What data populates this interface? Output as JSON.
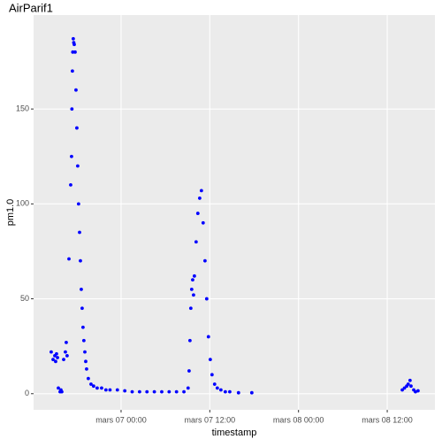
{
  "chart_data": {
    "type": "scatter",
    "title": "AirParif1",
    "x_label": "timestamp",
    "y_label": "pm1.0",
    "color": "#0000ff",
    "grid": true,
    "xlim": [
      "03-06 12:10",
      "03-08 18:27"
    ],
    "xticks": [
      {
        "value": "03-07 00:00",
        "label": "mars 07 00:00"
      },
      {
        "value": "03-07 12:00",
        "label": "mars 07 12:00"
      },
      {
        "value": "03-08 00:00",
        "label": "mars 08 00:00"
      },
      {
        "value": "03-08 12:00",
        "label": "mars 08 12:00"
      }
    ],
    "ylim": [
      -8.5,
      199.5
    ],
    "yticks": [
      0,
      50,
      100,
      150
    ],
    "x": [
      "03-06 14:33",
      "03-06 14:48",
      "03-06 15:02",
      "03-06 15:09",
      "03-06 15:16",
      "03-06 15:24",
      "03-06 15:31",
      "03-06 15:45",
      "03-06 15:52",
      "03-06 15:59",
      "03-06 16:14",
      "03-06 16:28",
      "03-06 16:35",
      "03-06 16:42",
      "03-06 16:57",
      "03-06 17:11",
      "03-06 17:18",
      "03-06 17:21",
      "03-06 17:25",
      "03-06 17:28",
      "03-06 17:32",
      "03-06 17:36",
      "03-06 17:40",
      "03-06 17:47",
      "03-06 17:54",
      "03-06 18:01",
      "03-06 18:08",
      "03-06 18:15",
      "03-06 18:23",
      "03-06 18:30",
      "03-06 18:37",
      "03-06 18:44",
      "03-06 18:51",
      "03-06 18:58",
      "03-06 19:06",
      "03-06 19:13",
      "03-06 19:20",
      "03-06 19:34",
      "03-06 19:56",
      "03-06 20:17",
      "03-06 20:46",
      "03-06 21:22",
      "03-06 21:57",
      "03-06 22:30",
      "03-06 23:30",
      "03-07 00:30",
      "03-07 01:30",
      "03-07 02:30",
      "03-07 03:30",
      "03-07 04:30",
      "03-07 05:30",
      "03-07 06:30",
      "03-07 07:30",
      "03-07 08:30",
      "03-07 09:04",
      "03-07 09:12",
      "03-07 09:19",
      "03-07 09:26",
      "03-07 09:33",
      "03-07 09:41",
      "03-07 09:48",
      "03-07 09:55",
      "03-07 10:09",
      "03-07 10:23",
      "03-07 10:38",
      "03-07 10:52",
      "03-07 11:06",
      "03-07 11:21",
      "03-07 11:35",
      "03-07 11:49",
      "03-07 12:04",
      "03-07 12:18",
      "03-07 12:39",
      "03-07 13:01",
      "03-07 13:30",
      "03-07 14:06",
      "03-07 14:42",
      "03-07 15:53",
      "03-07 17:41",
      "03-08 14:02",
      "03-08 14:20",
      "03-08 14:38",
      "03-08 14:50",
      "03-08 15:05",
      "03-08 15:13",
      "03-08 15:35",
      "03-08 15:49",
      "03-08 16:10"
    ],
    "values": [
      22,
      18,
      20,
      17,
      21,
      19,
      3,
      1,
      2,
      1,
      18,
      22,
      27,
      20,
      71,
      110,
      125,
      150,
      170,
      180,
      187,
      185,
      184,
      180,
      160,
      140,
      120,
      100,
      85,
      70,
      55,
      45,
      35,
      28,
      22,
      17,
      13,
      8,
      5,
      4,
      3,
      3,
      2,
      2,
      2,
      1.5,
      1,
      1,
      1,
      1,
      1,
      1,
      1,
      1,
      3,
      12,
      28,
      45,
      55,
      60,
      52,
      62,
      80,
      95,
      103,
      107,
      90,
      70,
      50,
      30,
      18,
      10,
      5,
      3,
      2,
      1,
      1,
      0.5,
      0.5,
      2,
      3,
      4,
      5,
      7,
      4,
      2,
      1,
      1.5
    ]
  }
}
